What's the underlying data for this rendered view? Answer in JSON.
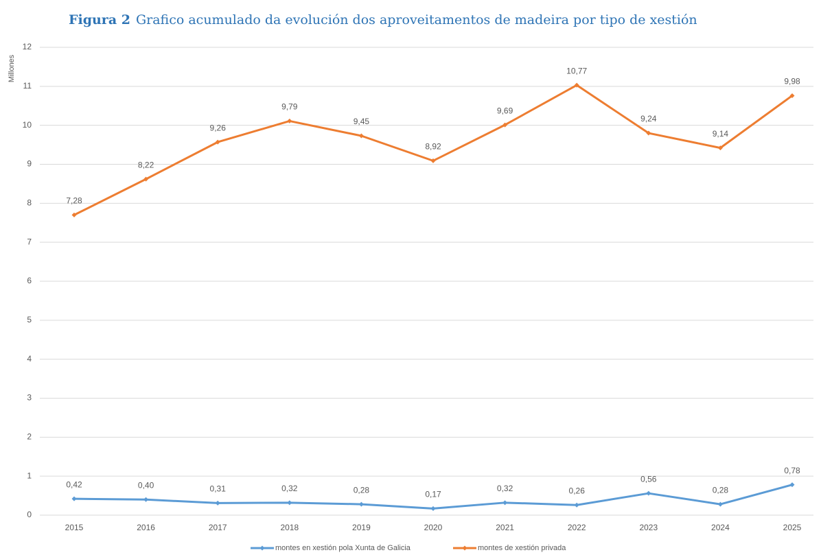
{
  "chart_data": {
    "type": "line",
    "stacked": true,
    "figure_label": "Figura 2",
    "title": "Grafico acumulado da evolución dos aproveitamentos de madeira por tipo de xestión",
    "y_label": "Millones",
    "categories": [
      "2015",
      "2016",
      "2017",
      "2018",
      "2019",
      "2020",
      "2021",
      "2022",
      "2023",
      "2024",
      "2025"
    ],
    "series": [
      {
        "name": "montes en xestión pola Xunta de Galicia",
        "color": "#5b9bd5",
        "values": [
          0.42,
          0.4,
          0.31,
          0.32,
          0.28,
          0.17,
          0.32,
          0.26,
          0.56,
          0.28,
          0.78
        ],
        "value_labels": [
          "0,42",
          "0,40",
          "0,31",
          "0,32",
          "0,28",
          "0,17",
          "0,32",
          "0,26",
          "0,56",
          "0,28",
          "0,78"
        ]
      },
      {
        "name": "montes de xestión privada",
        "color": "#ed7d31",
        "values": [
          7.28,
          8.22,
          9.26,
          9.79,
          9.45,
          8.92,
          9.69,
          10.77,
          9.24,
          9.14,
          9.98
        ],
        "value_labels": [
          "7,28",
          "8,22",
          "9,26",
          "9,79",
          "9,45",
          "8,92",
          "9,69",
          "10,77",
          "9,24",
          "9,14",
          "9,98"
        ]
      }
    ],
    "ylim": [
      0,
      12
    ],
    "yticks": [
      0,
      1,
      2,
      3,
      4,
      5,
      6,
      7,
      8,
      9,
      10,
      11,
      12
    ],
    "grid": true,
    "legend": "bottom"
  }
}
